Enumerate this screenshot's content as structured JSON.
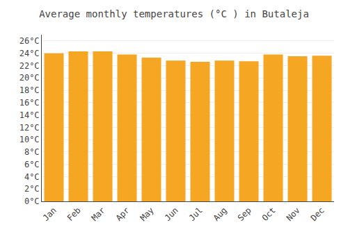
{
  "chart_data": {
    "type": "bar",
    "title": "Average monthly temperatures (°C ) in Butaleja",
    "categories": [
      "Jan",
      "Feb",
      "Mar",
      "Apr",
      "May",
      "Jun",
      "Jul",
      "Aug",
      "Sep",
      "Oct",
      "Nov",
      "Dec"
    ],
    "values": [
      24.0,
      24.3,
      24.3,
      23.8,
      23.3,
      22.8,
      22.6,
      22.8,
      22.7,
      23.8,
      23.5,
      23.6
    ],
    "color": "#F5A623",
    "ylim": [
      0,
      27
    ],
    "yticks": [
      {
        "value": 0,
        "label": "0°C"
      },
      {
        "value": 2,
        "label": "2°C"
      },
      {
        "value": 4,
        "label": "4°C"
      },
      {
        "value": 6,
        "label": "6°C"
      },
      {
        "value": 8,
        "label": "8°C"
      },
      {
        "value": 10,
        "label": "10°C"
      },
      {
        "value": 12,
        "label": "12°C"
      },
      {
        "value": 14,
        "label": "14°C"
      },
      {
        "value": 16,
        "label": "16°C"
      },
      {
        "value": 18,
        "label": "18°C"
      },
      {
        "value": 20,
        "label": "20°C"
      },
      {
        "value": 22,
        "label": "22°C"
      },
      {
        "value": 24,
        "label": "24°C"
      },
      {
        "value": 26,
        "label": "26°C"
      }
    ],
    "grid": true
  }
}
